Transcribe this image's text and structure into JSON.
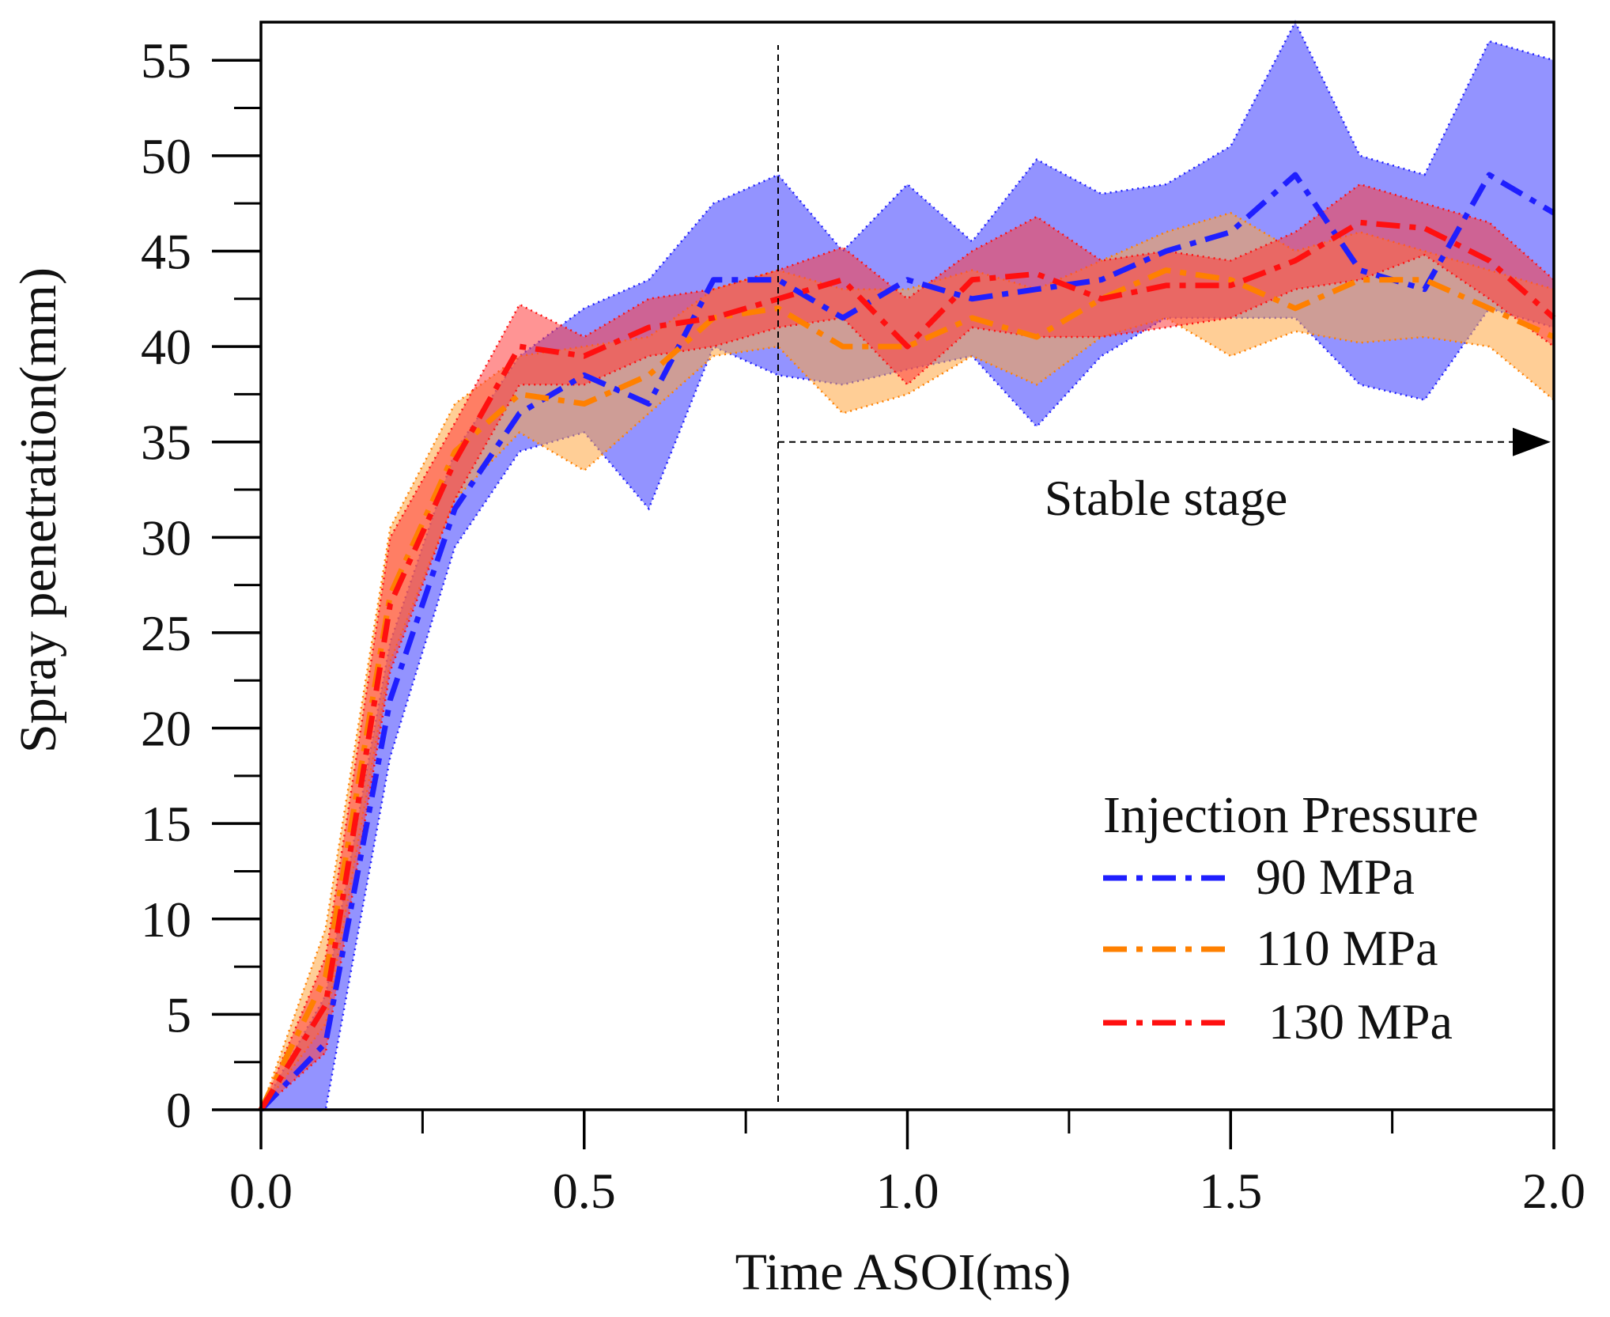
{
  "chart_data": {
    "type": "line",
    "title": "",
    "xlabel": "Time ASOI(ms)",
    "ylabel": "Spray penetration(mm)",
    "xlim": [
      0,
      2.0
    ],
    "ylim": [
      0,
      57
    ],
    "xticks": [
      0.0,
      0.5,
      1.0,
      1.5,
      2.0
    ],
    "xtick_labels": [
      "0.0",
      "0.5",
      "1.0",
      "1.5",
      "2.0"
    ],
    "yticks": [
      0,
      5,
      10,
      15,
      20,
      25,
      30,
      35,
      40,
      45,
      50,
      55
    ],
    "ytick_labels": [
      "0",
      "5",
      "10",
      "15",
      "20",
      "25",
      "30",
      "35",
      "40",
      "45",
      "50",
      "55"
    ],
    "grid": false,
    "legend": {
      "title": "Injection Pressure",
      "position": "bottom-right"
    },
    "series": [
      {
        "name": "90 MPa",
        "color": "#1f1fff",
        "band_color": "#4b4bff",
        "x": [
          0,
          0.1,
          0.2,
          0.3,
          0.4,
          0.5,
          0.6,
          0.7,
          0.8,
          0.9,
          1.0,
          1.1,
          1.2,
          1.3,
          1.4,
          1.5,
          1.6,
          1.7,
          1.8,
          1.9,
          2.0
        ],
        "mean": [
          0,
          3.5,
          21.5,
          31.5,
          36.5,
          38.5,
          37.0,
          43.5,
          43.5,
          41.5,
          43.5,
          42.5,
          43.0,
          43.5,
          45.0,
          46.0,
          49.0,
          44.0,
          43.0,
          49.0,
          47.0
        ],
        "upper": [
          0,
          6.0,
          24.5,
          34.5,
          39.5,
          42.0,
          43.5,
          47.5,
          49.0,
          45.0,
          48.5,
          45.5,
          49.8,
          48.0,
          48.5,
          50.5,
          57.0,
          50.0,
          49.0,
          56.0,
          55.0
        ],
        "lower": [
          0,
          0,
          18.5,
          29.5,
          34.5,
          35.5,
          31.5,
          40.0,
          38.5,
          38.0,
          38.8,
          39.5,
          35.8,
          39.5,
          41.5,
          41.5,
          41.5,
          38.0,
          37.2,
          42.0,
          41.0
        ]
      },
      {
        "name": "110 MPa",
        "color": "#ff8000",
        "band_color": "#ffa640",
        "x": [
          0,
          0.1,
          0.2,
          0.3,
          0.4,
          0.5,
          0.6,
          0.7,
          0.8,
          0.9,
          1.0,
          1.1,
          1.2,
          1.3,
          1.4,
          1.5,
          1.6,
          1.7,
          1.8,
          1.9,
          2.0
        ],
        "mean": [
          0,
          7.0,
          27.0,
          34.5,
          37.5,
          37.0,
          38.5,
          41.5,
          42.0,
          40.0,
          40.0,
          41.5,
          40.5,
          42.5,
          44.0,
          43.5,
          42.0,
          43.5,
          43.5,
          42.0,
          40.5
        ],
        "upper": [
          0,
          9.5,
          30.5,
          37.0,
          39.5,
          40.0,
          40.5,
          43.0,
          44.0,
          43.0,
          43.0,
          44.0,
          43.0,
          44.5,
          46.0,
          47.0,
          45.0,
          46.0,
          45.0,
          44.0,
          43.0
        ],
        "lower": [
          0,
          4.5,
          23.5,
          32.0,
          35.5,
          33.5,
          36.5,
          39.5,
          40.0,
          36.5,
          37.5,
          39.5,
          38.0,
          40.5,
          41.5,
          39.5,
          40.8,
          40.2,
          40.5,
          40.0,
          37.2
        ]
      },
      {
        "name": "130 MPa",
        "color": "#ff1010",
        "band_color": "#ff3c3c",
        "x": [
          0,
          0.1,
          0.2,
          0.3,
          0.4,
          0.5,
          0.6,
          0.7,
          0.8,
          0.9,
          1.0,
          1.1,
          1.2,
          1.3,
          1.4,
          1.5,
          1.6,
          1.7,
          1.8,
          1.9,
          2.0
        ],
        "mean": [
          0,
          5.5,
          26.5,
          34.0,
          40.0,
          39.5,
          41.0,
          41.5,
          42.5,
          43.5,
          40.0,
          43.5,
          43.8,
          42.5,
          43.2,
          43.2,
          44.5,
          46.5,
          46.2,
          44.5,
          41.5
        ],
        "upper": [
          0,
          8.0,
          30.0,
          36.0,
          42.2,
          40.5,
          42.5,
          43.0,
          44.0,
          45.2,
          42.5,
          45.0,
          46.8,
          44.5,
          45.0,
          44.5,
          46.0,
          48.5,
          47.5,
          46.5,
          43.5
        ],
        "lower": [
          0,
          3.0,
          23.0,
          32.0,
          38.0,
          38.0,
          39.5,
          40.0,
          41.0,
          41.5,
          38.0,
          41.0,
          40.5,
          40.5,
          41.0,
          41.5,
          43.0,
          43.5,
          44.8,
          42.5,
          40.0
        ]
      }
    ],
    "annotations": [
      {
        "type": "vline",
        "x": 0.8,
        "y_range": [
          0,
          55.8
        ],
        "style": "dashed"
      },
      {
        "type": "arrow",
        "from": [
          0.8,
          35
        ],
        "to": [
          2.0,
          35
        ],
        "style": "dashed"
      },
      {
        "type": "text",
        "text": "Stable stage",
        "x": 1.4,
        "y": 32
      }
    ]
  }
}
